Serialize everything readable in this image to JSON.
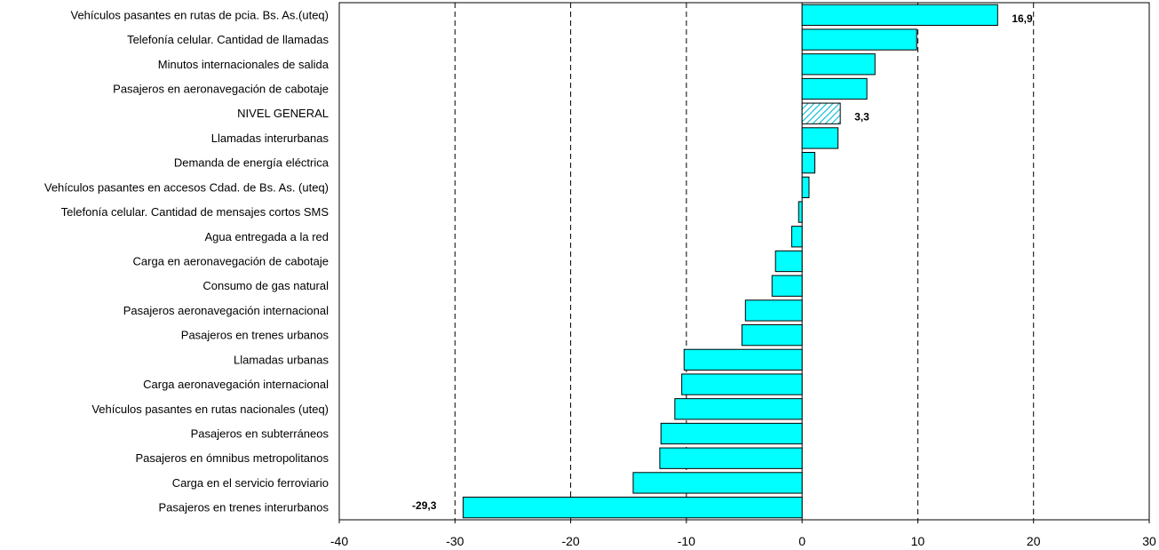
{
  "chart_data": {
    "type": "bar",
    "orientation": "horizontal",
    "categories": [
      "Vehículos pasantes en rutas de pcia. Bs. As.(uteq)",
      "Telefonía celular. Cantidad de llamadas",
      "Minutos internacionales de salida",
      "Pasajeros en aeronavegación de cabotaje",
      "NIVEL GENERAL",
      "Llamadas interurbanas",
      "Demanda de energía eléctrica",
      "Vehículos pasantes en accesos Cdad. de Bs. As. (uteq)",
      "Telefonía celular. Cantidad de mensajes cortos SMS",
      "Agua entregada a la red",
      "Carga en aeronavegación de cabotaje",
      "Consumo de gas natural",
      "Pasajeros aeronavegación internacional",
      "Pasajeros en trenes urbanos",
      "Llamadas urbanas",
      "Carga aeronavegación internacional",
      "Vehículos pasantes en rutas nacionales (uteq)",
      "Pasajeros en subterráneos",
      "Pasajeros en ómnibus metropolitanos",
      "Carga en el servicio ferroviario",
      "Pasajeros en trenes interurbanos"
    ],
    "values": [
      16.9,
      9.9,
      6.3,
      5.6,
      3.3,
      3.1,
      1.1,
      0.6,
      -0.3,
      -0.9,
      -2.3,
      -2.6,
      -4.9,
      -5.2,
      -10.2,
      -10.4,
      -11.0,
      -12.2,
      -12.3,
      -14.6,
      -29.3
    ],
    "highlight_category": "NIVEL GENERAL",
    "data_labels": [
      {
        "category": "Vehículos pasantes en rutas de pcia. Bs. As.(uteq)",
        "text": "16,9"
      },
      {
        "category": "NIVEL GENERAL",
        "text": "3,3"
      },
      {
        "category": "Pasajeros en trenes interurbanos",
        "text": "-29,3"
      }
    ],
    "xlim": [
      -40,
      30
    ],
    "xticks": [
      -40,
      -30,
      -20,
      -10,
      0,
      10,
      20,
      30
    ],
    "grid": "vertical dashed",
    "title": "",
    "xlabel": "",
    "ylabel": "",
    "colors": {
      "bar_fill": "#00ffff",
      "bar_stroke": "#000000",
      "highlight_hatch": "#00ccdd",
      "grid": "#000000"
    }
  }
}
